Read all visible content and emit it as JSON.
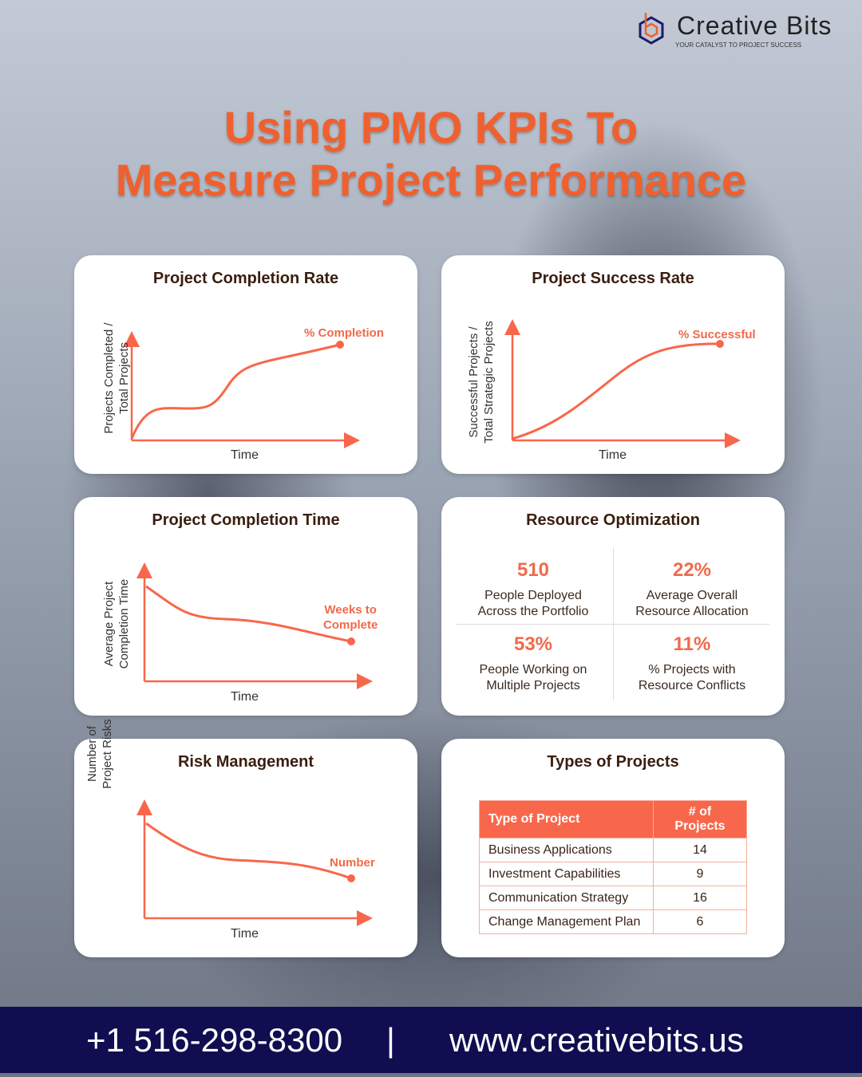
{
  "brand": {
    "name": "Creative Bits",
    "tagline": "YOUR CATALYST TO PROJECT SUCCESS"
  },
  "title": {
    "line1": "Using PMO KPIs To",
    "line2": "Measure Project Performance"
  },
  "colors": {
    "accent": "#f0602e",
    "curve": "#f8674b",
    "footer": "#100e50"
  },
  "cards": {
    "completion_rate": {
      "title": "Project Completion Rate",
      "ylabel1": "Projects Completed /",
      "ylabel2": "Total Projects",
      "xlabel": "Time",
      "series": "% Completion"
    },
    "success_rate": {
      "title": "Project Success Rate",
      "ylabel1": "Successful Projects /",
      "ylabel2": "Total Strategic Projects",
      "xlabel": "Time",
      "series": "% Successful"
    },
    "completion_time": {
      "title": "Project Completion Time",
      "ylabel1": "Average Project",
      "ylabel2": "Completion Time",
      "xlabel": "Time",
      "series1": "Weeks to",
      "series2": "Complete"
    },
    "resource": {
      "title": "Resource Optimization",
      "stats": [
        {
          "value": "510",
          "l1": "People Deployed",
          "l2": "Across the Portfolio"
        },
        {
          "value": "22%",
          "l1": "Average Overall",
          "l2": "Resource Allocation"
        },
        {
          "value": "53%",
          "l1": "People Working on",
          "l2": "Multiple Projects"
        },
        {
          "value": "11%",
          "l1": "% Projects with",
          "l2": "Resource Conflicts"
        }
      ]
    },
    "risk": {
      "title": "Risk Management",
      "ylabel1": "Number of",
      "ylabel2": "Project Risks",
      "xlabel": "Time",
      "series": "Number"
    },
    "types": {
      "title": "Types of Projects",
      "headers": [
        "Type of Project",
        "# of Projects"
      ],
      "rows": [
        [
          "Business Applications",
          "14"
        ],
        [
          "Investment Capabilities",
          "9"
        ],
        [
          "Communication Strategy",
          "16"
        ],
        [
          "Change Management Plan",
          "6"
        ]
      ]
    }
  },
  "footer": {
    "phone": "+1 516-298-8300",
    "separator": "|",
    "website": "www.creativebits.us"
  }
}
